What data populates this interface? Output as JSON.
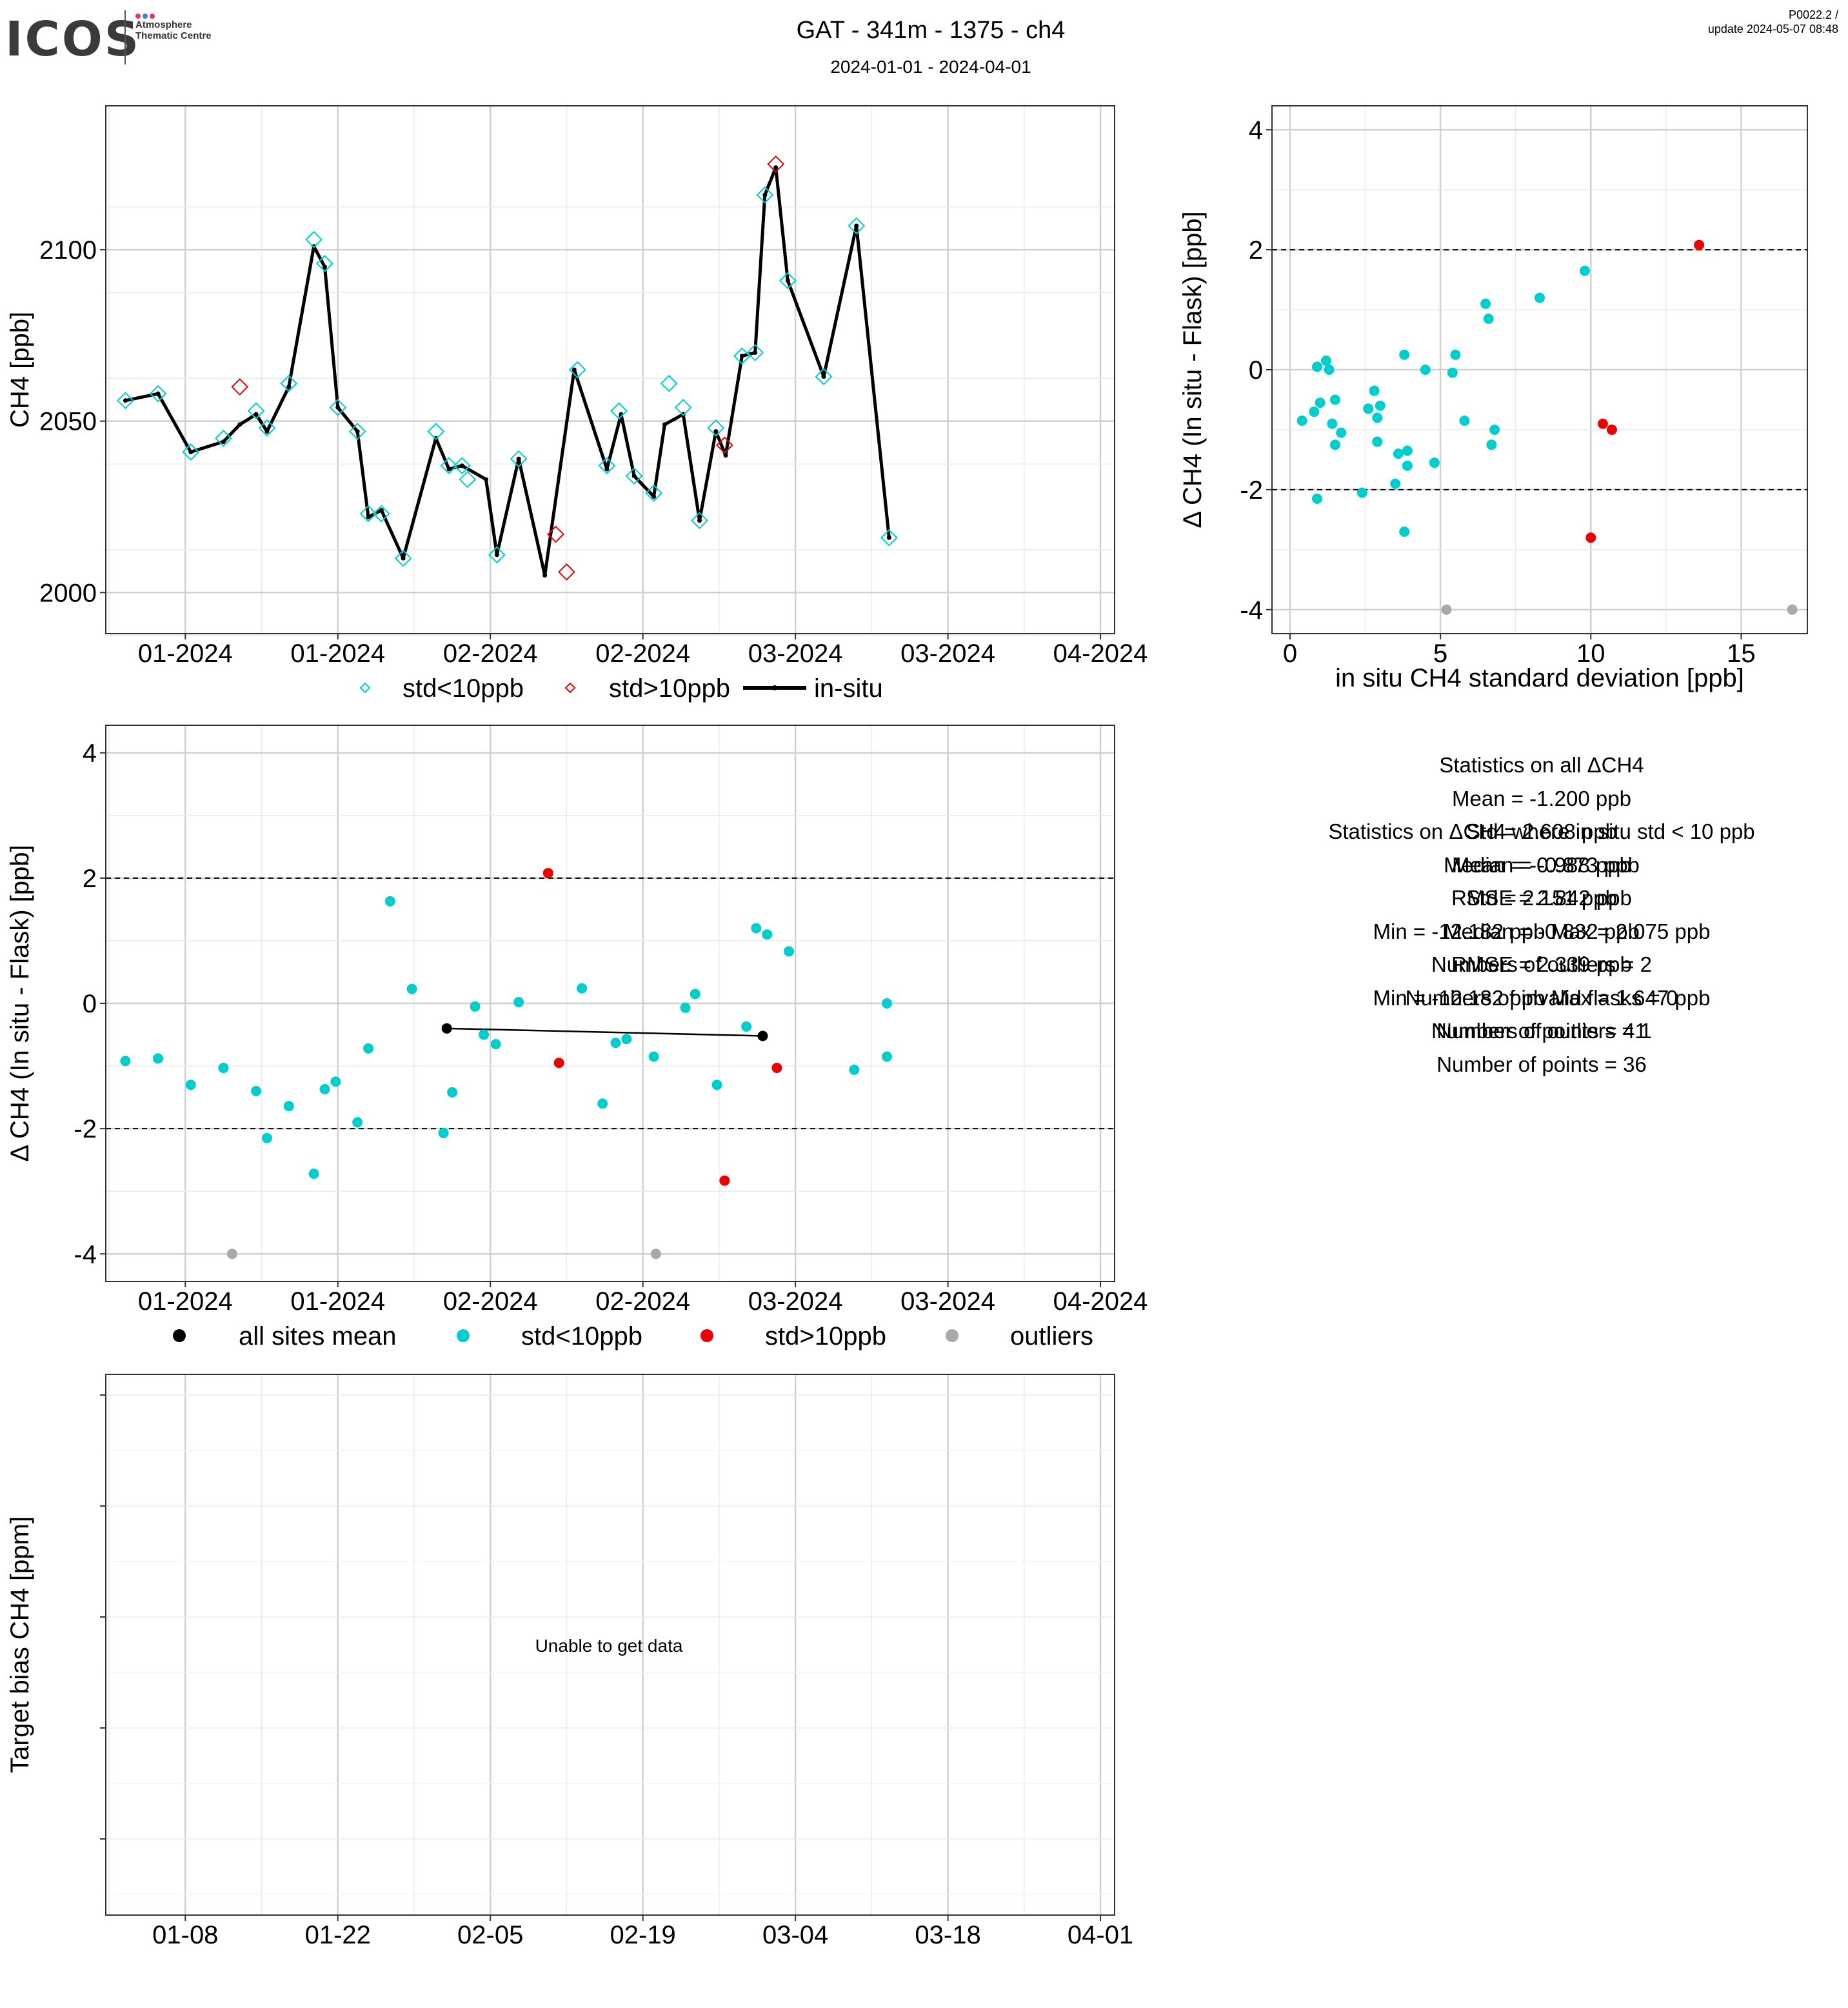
{
  "header": {
    "logo_text": "ICOS",
    "logo_sub": "Atmosphere Thematic Centre",
    "logo_dot_colors": [
      "#e8336b",
      "#3a7fd5",
      "#e8336b"
    ],
    "title": "GAT - 341m - 1375 - ch4",
    "subtitle": "2024-01-01 - 2024-04-01",
    "version_line1": "P0022.2 /",
    "version_line2": "update  2024-05-07 08:48"
  },
  "colors": {
    "std_lt10": "#00CDCD",
    "std_gt10": "#EE0000",
    "outlier": "#A9A9A9",
    "in_situ": "#000000",
    "all_sites_mean": "#000000"
  },
  "chart_data": [
    {
      "id": "timeseries",
      "type": "line",
      "ylabel": "CH4 [ppb]",
      "x_tick_labels": [
        "01-2024",
        "01-2024",
        "02-2024",
        "02-2024",
        "03-2024",
        "03-2024",
        "04-2024"
      ],
      "x_tick_days": [
        7,
        21,
        35,
        49,
        63,
        77,
        91
      ],
      "xlim_days": [
        -0.3,
        92.3
      ],
      "ylim": [
        1988,
        2142
      ],
      "y_ticks": [
        2000,
        2050,
        2100
      ],
      "grid": true,
      "legend_position": "bottom",
      "legend": [
        {
          "label": "std<10ppb",
          "marker": "open-diamond",
          "color": "#00CDCD"
        },
        {
          "label": "std>10ppb",
          "marker": "open-diamond",
          "color": "#EE0000"
        },
        {
          "label": "in-situ",
          "marker": "line",
          "color": "#000000"
        }
      ],
      "in_situ": {
        "days": [
          1.5,
          4.5,
          7.5,
          10.5,
          12,
          13.5,
          14.5,
          16.5,
          18.8,
          19.8,
          21,
          22.8,
          23.8,
          25,
          27,
          30,
          31.2,
          32.4,
          34.6,
          35.6,
          37.6,
          40,
          42.7,
          45.7,
          47,
          48.2,
          50,
          51,
          52.7,
          54.2,
          55.7,
          56.6,
          58.1,
          59.3,
          60.2,
          61.2,
          62.3,
          65.6,
          68.6,
          71.6
        ],
        "values": [
          2056,
          2058,
          2041,
          2044,
          2049,
          2052,
          2047,
          2060,
          2101,
          2095,
          2054,
          2047,
          2022,
          2024,
          2010,
          2045,
          2036,
          2037,
          2033,
          2011,
          2039,
          2005,
          2065,
          2036,
          2052,
          2034,
          2028,
          2049,
          2052,
          2021,
          2047,
          2040,
          2069,
          2070,
          2116,
          2124,
          2091,
          2063,
          2107,
          2016
        ]
      },
      "flask_std_lt10": {
        "days": [
          1.5,
          4.5,
          7.5,
          10.5,
          13.5,
          14.5,
          16.5,
          18.8,
          19.8,
          21,
          22.8,
          23.8,
          25,
          27,
          30,
          31.2,
          32.4,
          32.9,
          35.6,
          37.6,
          43,
          45.7,
          46.8,
          48.2,
          50,
          51.4,
          52.7,
          54.2,
          55.7,
          58.1,
          59.3,
          60.2,
          62.3,
          65.6,
          68.6,
          71.6
        ],
        "values": [
          2056,
          2058,
          2041,
          2045,
          2053,
          2048,
          2061,
          2103,
          2096,
          2054,
          2047,
          2023,
          2023,
          2010,
          2047,
          2037,
          2037,
          2033,
          2011,
          2039,
          2065,
          2037,
          2053,
          2034,
          2029,
          2061,
          2054,
          2021,
          2048,
          2069,
          2070,
          2116,
          2091,
          2063,
          2107,
          2016
        ]
      },
      "flask_std_gt10": {
        "days": [
          12,
          41,
          42,
          56.5,
          61.2
        ],
        "values": [
          2060,
          2017,
          2006,
          2043,
          2125
        ]
      }
    },
    {
      "id": "delta_vs_std",
      "type": "scatter",
      "xlabel": "in situ CH4 standard deviation [ppb]",
      "ylabel": "Δ CH4 (In situ - Flask) [ppb]",
      "xlim": [
        -0.6,
        17.2
      ],
      "ylim": [
        -4.4,
        4.4
      ],
      "x_ticks": [
        0,
        5,
        10,
        15
      ],
      "y_ticks": [
        -4,
        -2,
        0,
        2,
        4
      ],
      "hlines_dashed": [
        2,
        -2
      ],
      "grid": true,
      "std_lt10": {
        "x": [
          0.4,
          0.8,
          0.9,
          1.0,
          1.2,
          1.3,
          1.4,
          1.5,
          1.5,
          1.7,
          0.9,
          2.4,
          2.6,
          2.8,
          2.9,
          2.9,
          3.0,
          3.5,
          3.6,
          3.8,
          3.9,
          3.9,
          3.9,
          3.8,
          4.5,
          4.8,
          5.4,
          5.5,
          5.8,
          6.5,
          6.6,
          6.7,
          6.8,
          8.3,
          9.8
        ],
        "y": [
          -0.85,
          -0.7,
          0.05,
          -0.55,
          0.15,
          0.0,
          -0.9,
          -1.25,
          -0.5,
          -1.05,
          -2.15,
          -2.05,
          -0.65,
          -0.35,
          -0.8,
          -1.2,
          -0.6,
          -1.9,
          -1.4,
          0.25,
          -1.6,
          -1.35,
          -1.35,
          -2.7,
          0.0,
          -1.55,
          -0.05,
          0.25,
          -0.85,
          1.1,
          0.85,
          -1.25,
          -1.0,
          1.2,
          1.65
        ]
      },
      "std_gt10": {
        "x": [
          10.0,
          10.4,
          10.7,
          13.6
        ],
        "y": [
          -2.8,
          -0.9,
          -1.0,
          2.08
        ]
      },
      "outliers": {
        "x": [
          5.2,
          16.7
        ],
        "y": [
          -4.0,
          -4.0
        ]
      }
    },
    {
      "id": "delta_timeseries",
      "type": "scatter",
      "ylabel": "Δ CH4 (In situ - Flask) [ppb]",
      "x_tick_labels": [
        "01-2024",
        "01-2024",
        "02-2024",
        "02-2024",
        "03-2024",
        "03-2024",
        "04-2024"
      ],
      "x_tick_days": [
        7,
        21,
        35,
        49,
        63,
        77,
        91
      ],
      "xlim_days": [
        -0.3,
        92.3
      ],
      "ylim": [
        -4.44,
        4.44
      ],
      "y_ticks": [
        -4,
        -2,
        0,
        2,
        4
      ],
      "hlines_dashed": [
        2,
        -2
      ],
      "grid": true,
      "legend_position": "bottom",
      "legend": [
        {
          "label": "all sites mean",
          "color": "#000000"
        },
        {
          "label": "std<10ppb",
          "color": "#00CDCD"
        },
        {
          "label": "std>10ppb",
          "color": "#EE0000"
        },
        {
          "label": "outliers",
          "color": "#A9A9A9"
        }
      ],
      "all_sites_mean": {
        "days": [
          31,
          60
        ],
        "values": [
          -0.4,
          -0.52
        ]
      },
      "std_lt10": {
        "days": [
          1.5,
          4.5,
          7.5,
          10.5,
          13.5,
          14.5,
          16.5,
          18.8,
          19.8,
          20.8,
          22.8,
          23.8,
          25.8,
          27.8,
          30.7,
          31.5,
          33.6,
          34.4,
          35.5,
          37.6,
          43.4,
          45.3,
          46.5,
          47.5,
          50,
          52.9,
          53.8,
          55.8,
          58.5,
          59.4,
          60.4,
          62.4,
          68.4,
          71.4,
          71.4
        ],
        "values": [
          -0.92,
          -0.88,
          -1.3,
          -1.03,
          -1.4,
          -2.15,
          -1.64,
          -2.72,
          -1.37,
          -1.25,
          -1.9,
          -0.72,
          1.63,
          0.23,
          -2.07,
          -1.42,
          -0.05,
          -0.5,
          -0.65,
          0.02,
          0.24,
          -1.6,
          -0.63,
          -0.57,
          -0.85,
          -0.07,
          0.15,
          -1.3,
          -0.37,
          1.2,
          1.1,
          0.83,
          -1.06,
          -0.85,
          0.0
        ]
      },
      "std_gt10": {
        "days": [
          40.3,
          41.3,
          56.5,
          61.3
        ],
        "values": [
          2.08,
          -0.95,
          -2.83,
          -1.03
        ]
      },
      "outliers": {
        "days": [
          11.3,
          50.2
        ],
        "values": [
          -4.0,
          -4.0
        ]
      }
    },
    {
      "id": "target_bias",
      "type": "line",
      "ylabel": "Target bias CH4 [ppm]",
      "x_tick_labels": [
        "01-08",
        "01-22",
        "02-05",
        "02-19",
        "03-04",
        "03-18",
        "04-01"
      ],
      "x_tick_days": [
        7,
        21,
        35,
        49,
        63,
        77,
        91
      ],
      "xlim_days": [
        -0.3,
        92.3
      ],
      "message": "Unable to get data"
    }
  ],
  "stats_all": {
    "lines": [
      "Statistics on all ΔCH4",
      "Mean =  -1.200 ppb",
      "Std =  2.608 ppb",
      "Median =  -0.873 ppb",
      "RMSE =  2.842 ppb",
      "Min =  -12.182 ppb Max =  2.075 ppb",
      "Numbers of outliers =  2",
      "Numbers of invalid flasks =  0",
      "Number of points =  41"
    ]
  },
  "stats_lt10": {
    "lines": [
      "Statistics on ΔCH4 where in situ std < 10 ppb",
      "Mean =  -0.988 ppb",
      "Std =  2.151 ppb",
      "Median =  -0.832 ppb",
      "RMSE =  2.339 ppb",
      "Min =  -12.182 ppb Max =  1.647 ppb",
      "Numbers of outliers =  1",
      "Number of points =  36"
    ]
  }
}
